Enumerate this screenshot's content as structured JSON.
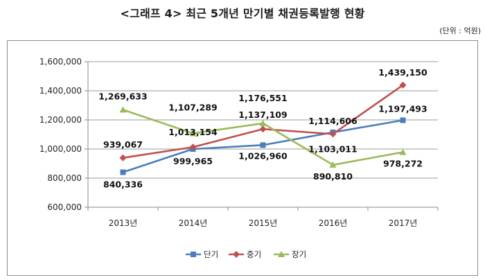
{
  "title": "<그래프 4> 최근 5개년 만기별 채권등록발행 현황",
  "unit": "(단위 : 억원)",
  "chart_data": {
    "type": "line",
    "categories": [
      "2013년",
      "2014년",
      "2015년",
      "2016년",
      "2017년"
    ],
    "ylim": [
      600000,
      1600000
    ],
    "yticks": [
      "600,000",
      "800,000",
      "1,000,000",
      "1,200,000",
      "1,400,000",
      "1,600,000"
    ],
    "grid": true,
    "legend_position": "bottom",
    "series": [
      {
        "name": "단기",
        "color": "#4a7ebb",
        "marker": "square",
        "values": [
          840336,
          999965,
          1026960,
          1114606,
          1197493
        ],
        "labels": [
          "840,336",
          "999,965",
          "1,026,960",
          "1,114,606",
          "1,197,493"
        ]
      },
      {
        "name": "중기",
        "color": "#c0504d",
        "marker": "diamond",
        "values": [
          939067,
          1013154,
          1137109,
          1103011,
          1439150
        ],
        "labels": [
          "939,067",
          "1,013,154",
          "1,137,109",
          "1,103,011",
          "1,439,150"
        ]
      },
      {
        "name": "장기",
        "color": "#9bbb59",
        "marker": "triangle",
        "values": [
          1269633,
          1107289,
          1176551,
          890810,
          978272
        ],
        "labels": [
          "1,269,633",
          "1,107,289",
          "1,176,551",
          "890,810",
          "978,272"
        ]
      }
    ]
  }
}
